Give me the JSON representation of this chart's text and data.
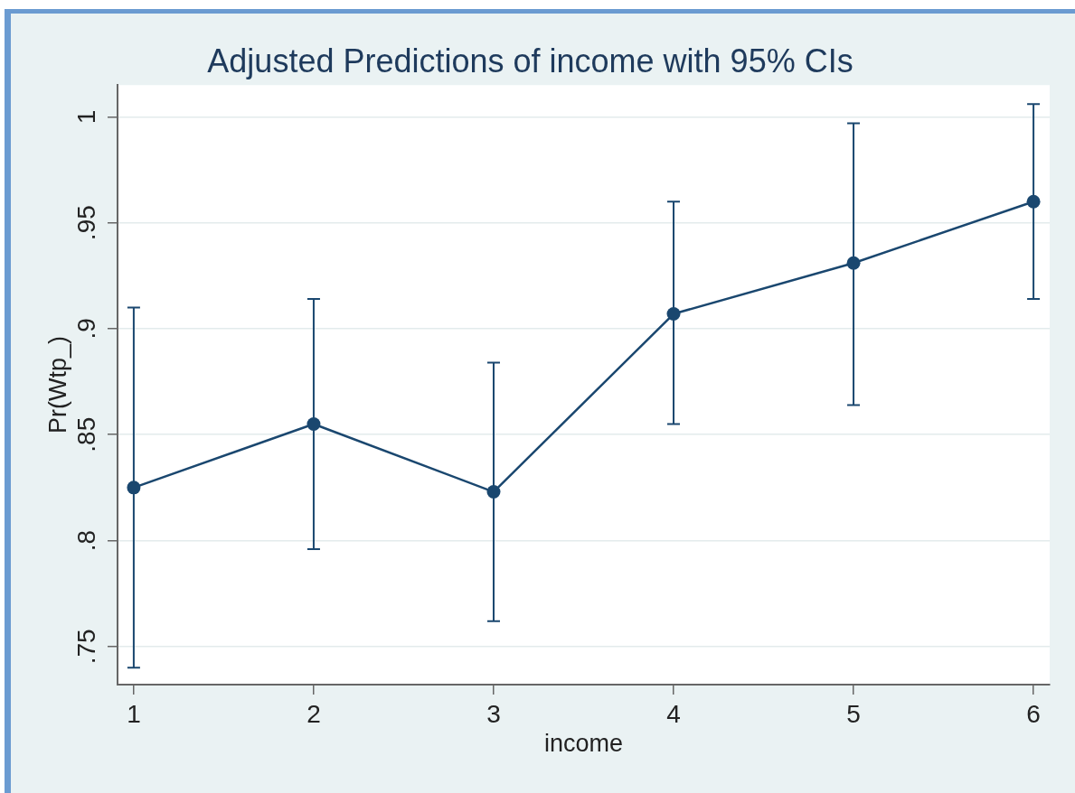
{
  "chart_data": {
    "type": "line",
    "title": "Adjusted Predictions of income with 95% CIs",
    "xlabel": "income",
    "ylabel": "Pr(Wtp_)",
    "x": [
      1,
      2,
      3,
      4,
      5,
      6
    ],
    "series": [
      {
        "color": "#1a476f",
        "values": [
          0.825,
          0.855,
          0.823,
          0.907,
          0.931,
          0.96
        ],
        "errors": [
          [
            0.74,
            0.91
          ],
          [
            0.796,
            0.914
          ],
          [
            0.762,
            0.884
          ],
          [
            0.855,
            0.96
          ],
          [
            0.864,
            0.997
          ],
          [
            0.914,
            1.006
          ]
        ]
      }
    ],
    "xlim": [
      0.91,
      6.09
    ],
    "xticks": [
      1,
      2,
      3,
      4,
      5,
      6
    ],
    "ylim": [
      0.732,
      1.015
    ],
    "yticks": [
      {
        "value": 0.75,
        "label": ".75"
      },
      {
        "value": 0.8,
        "label": ".8"
      },
      {
        "value": 0.85,
        "label": ".85"
      },
      {
        "value": 0.9,
        "label": ".9"
      },
      {
        "value": 0.95,
        "label": ".95"
      },
      1
    ],
    "grid": "y",
    "legend": false,
    "marker": "circle",
    "line_style": "solid"
  }
}
